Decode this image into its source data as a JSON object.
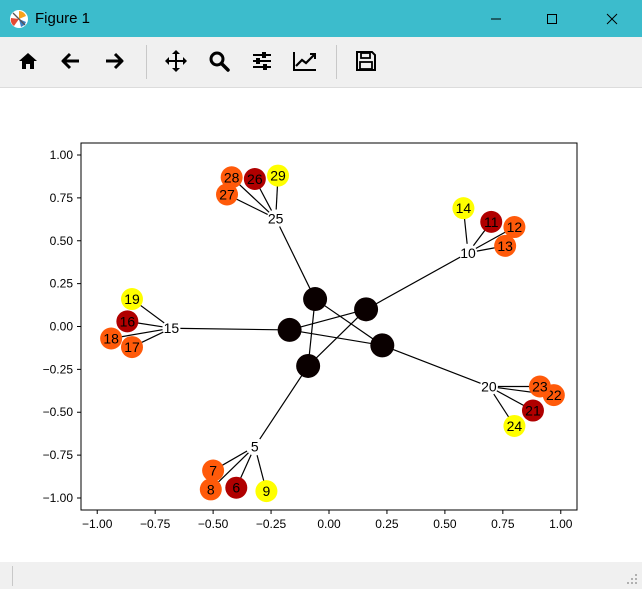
{
  "window": {
    "title": "Figure 1",
    "controls": [
      "minimize",
      "maximize",
      "close"
    ]
  },
  "toolbar": {
    "buttons": [
      {
        "name": "home",
        "icon": "home-icon"
      },
      {
        "name": "back",
        "icon": "arrow-left-icon"
      },
      {
        "name": "forward",
        "icon": "arrow-right-icon"
      },
      {
        "name": "pan",
        "icon": "move-icon"
      },
      {
        "name": "zoom",
        "icon": "magnifier-icon"
      },
      {
        "name": "configure-subplots",
        "icon": "sliders-icon"
      },
      {
        "name": "edit-axis",
        "icon": "line-chart-icon"
      },
      {
        "name": "save",
        "icon": "floppy-disk-icon"
      }
    ]
  },
  "chart_data": {
    "type": "scatter",
    "title": "",
    "xlabel": "",
    "ylabel": "",
    "xlim": [
      -1.07,
      1.07
    ],
    "ylim": [
      -1.07,
      1.07
    ],
    "x_ticks": [
      "−1.00",
      "−0.75",
      "−0.50",
      "−0.25",
      "0.00",
      "0.25",
      "0.50",
      "0.75",
      "1.00"
    ],
    "y_ticks": [
      "1.00",
      "0.75",
      "0.50",
      "0.25",
      "0.00",
      "−0.25",
      "−0.50",
      "−0.75",
      "−1.00"
    ],
    "x_tick_values": [
      -1.0,
      -0.75,
      -0.5,
      -0.25,
      0.0,
      0.25,
      0.5,
      0.75,
      1.0
    ],
    "y_tick_values": [
      1.0,
      0.75,
      0.5,
      0.25,
      0.0,
      -0.25,
      -0.5,
      -0.75,
      -1.0
    ],
    "grid": false,
    "colors": {
      "black": "#0a0000",
      "darkred": "#b00000",
      "orange": "#ff5a0a",
      "yellow": "#ffff00"
    },
    "nodes": [
      {
        "id": "c0",
        "label": "",
        "x": -0.06,
        "y": 0.16,
        "color": "black",
        "big": true
      },
      {
        "id": "c1",
        "label": "",
        "x": 0.16,
        "y": 0.1,
        "color": "black",
        "big": true
      },
      {
        "id": "c2",
        "label": "",
        "x": -0.17,
        "y": -0.02,
        "color": "black",
        "big": true
      },
      {
        "id": "c3",
        "label": "",
        "x": 0.23,
        "y": -0.11,
        "color": "black",
        "big": true
      },
      {
        "id": "c4",
        "label": "",
        "x": -0.09,
        "y": -0.23,
        "color": "black",
        "big": true
      },
      {
        "id": "n5",
        "label": "5",
        "x": -0.32,
        "y": -0.7,
        "color": "none"
      },
      {
        "id": "n6",
        "label": "6",
        "x": -0.4,
        "y": -0.94,
        "color": "darkred"
      },
      {
        "id": "n7",
        "label": "7",
        "x": -0.5,
        "y": -0.84,
        "color": "orange"
      },
      {
        "id": "n8",
        "label": "8",
        "x": -0.51,
        "y": -0.95,
        "color": "orange"
      },
      {
        "id": "n9",
        "label": "9",
        "x": -0.27,
        "y": -0.96,
        "color": "yellow"
      },
      {
        "id": "n10",
        "label": "10",
        "x": 0.6,
        "y": 0.43,
        "color": "none"
      },
      {
        "id": "n11",
        "label": "11",
        "x": 0.7,
        "y": 0.61,
        "color": "darkred"
      },
      {
        "id": "n12",
        "label": "12",
        "x": 0.8,
        "y": 0.58,
        "color": "orange"
      },
      {
        "id": "n13",
        "label": "13",
        "x": 0.76,
        "y": 0.47,
        "color": "orange"
      },
      {
        "id": "n14",
        "label": "14",
        "x": 0.58,
        "y": 0.69,
        "color": "yellow"
      },
      {
        "id": "n15",
        "label": "15",
        "x": -0.68,
        "y": -0.01,
        "color": "none"
      },
      {
        "id": "n16",
        "label": "16",
        "x": -0.87,
        "y": 0.03,
        "color": "darkred"
      },
      {
        "id": "n17",
        "label": "17",
        "x": -0.85,
        "y": -0.12,
        "color": "orange"
      },
      {
        "id": "n18",
        "label": "18",
        "x": -0.94,
        "y": -0.07,
        "color": "orange"
      },
      {
        "id": "n19",
        "label": "19",
        "x": -0.85,
        "y": 0.16,
        "color": "yellow"
      },
      {
        "id": "n20",
        "label": "20",
        "x": 0.69,
        "y": -0.35,
        "color": "none"
      },
      {
        "id": "n21",
        "label": "21",
        "x": 0.88,
        "y": -0.49,
        "color": "darkred"
      },
      {
        "id": "n22",
        "label": "22",
        "x": 0.97,
        "y": -0.4,
        "color": "orange"
      },
      {
        "id": "n23",
        "label": "23",
        "x": 0.91,
        "y": -0.35,
        "color": "orange"
      },
      {
        "id": "n24",
        "label": "24",
        "x": 0.8,
        "y": -0.58,
        "color": "yellow"
      },
      {
        "id": "n25",
        "label": "25",
        "x": -0.23,
        "y": 0.63,
        "color": "none"
      },
      {
        "id": "n26",
        "label": "26",
        "x": -0.32,
        "y": 0.86,
        "color": "darkred"
      },
      {
        "id": "n27",
        "label": "27",
        "x": -0.44,
        "y": 0.77,
        "color": "orange"
      },
      {
        "id": "n28",
        "label": "28",
        "x": -0.42,
        "y": 0.87,
        "color": "orange"
      },
      {
        "id": "n29",
        "label": "29",
        "x": -0.22,
        "y": 0.88,
        "color": "yellow"
      }
    ],
    "edges": [
      [
        "c0",
        "c3"
      ],
      [
        "c0",
        "c4"
      ],
      [
        "c2",
        "c1"
      ],
      [
        "c2",
        "c3"
      ],
      [
        "c4",
        "c1"
      ],
      [
        "n5",
        "c4"
      ],
      [
        "n5",
        "n6"
      ],
      [
        "n5",
        "n7"
      ],
      [
        "n5",
        "n8"
      ],
      [
        "n5",
        "n9"
      ],
      [
        "n10",
        "c1"
      ],
      [
        "n10",
        "n11"
      ],
      [
        "n10",
        "n12"
      ],
      [
        "n10",
        "n13"
      ],
      [
        "n10",
        "n14"
      ],
      [
        "n15",
        "c2"
      ],
      [
        "n15",
        "n16"
      ],
      [
        "n15",
        "n17"
      ],
      [
        "n15",
        "n18"
      ],
      [
        "n15",
        "n19"
      ],
      [
        "n20",
        "c3"
      ],
      [
        "n20",
        "n21"
      ],
      [
        "n20",
        "n22"
      ],
      [
        "n20",
        "n23"
      ],
      [
        "n20",
        "n24"
      ],
      [
        "n25",
        "c0"
      ],
      [
        "n25",
        "n26"
      ],
      [
        "n25",
        "n27"
      ],
      [
        "n25",
        "n28"
      ],
      [
        "n25",
        "n29"
      ]
    ]
  }
}
